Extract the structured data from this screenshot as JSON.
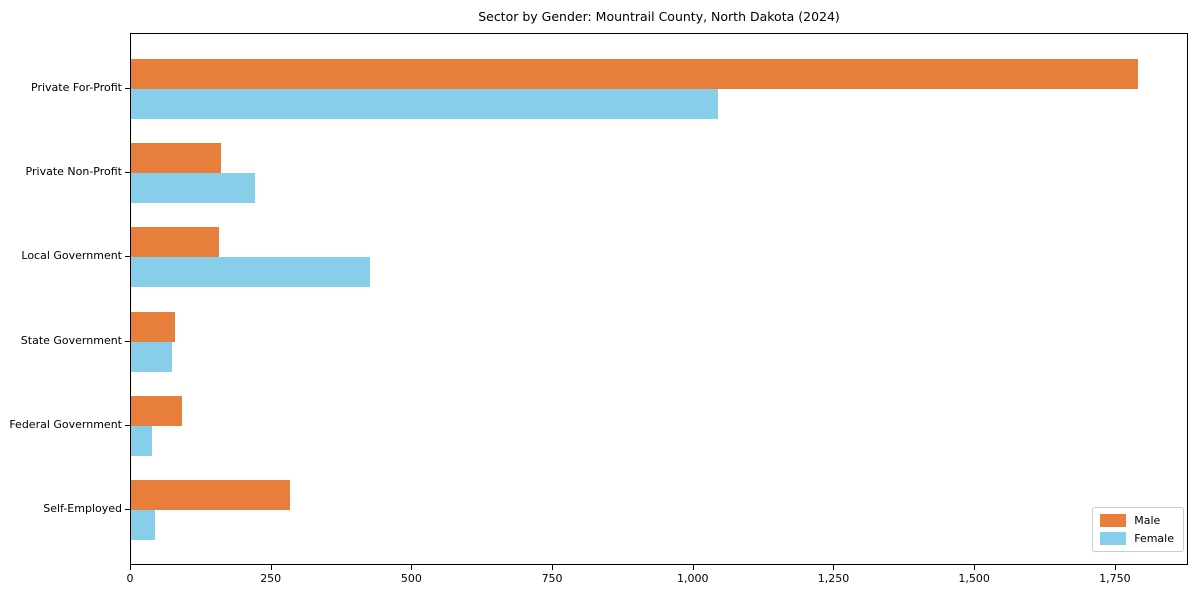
{
  "chart_data": {
    "type": "bar",
    "orientation": "horizontal",
    "title": "Sector by Gender: Mountrail County, North Dakota (2024)",
    "categories": [
      "Private For-Profit",
      "Private Non-Profit",
      "Local Government",
      "State Government",
      "Federal Government",
      "Self-Employed"
    ],
    "series": [
      {
        "name": "Male",
        "color": "#E87E3B",
        "values": [
          1790,
          160,
          157,
          78,
          91,
          283
        ]
      },
      {
        "name": "Female",
        "color": "#87CEEB",
        "values": [
          1043,
          220,
          425,
          73,
          37,
          43
        ]
      }
    ],
    "xlim": [
      0,
      1880
    ],
    "x_ticks": [
      0,
      250,
      500,
      750,
      1000,
      1250,
      1500,
      1750
    ],
    "x_tick_labels": [
      "0",
      "250",
      "500",
      "750",
      "1,000",
      "1,250",
      "1,500",
      "1,750"
    ],
    "legend": {
      "position": "lower right",
      "entries": [
        "Male",
        "Female"
      ]
    },
    "grid": false,
    "background_color": "#ffffff",
    "axis_color": "#000000"
  }
}
